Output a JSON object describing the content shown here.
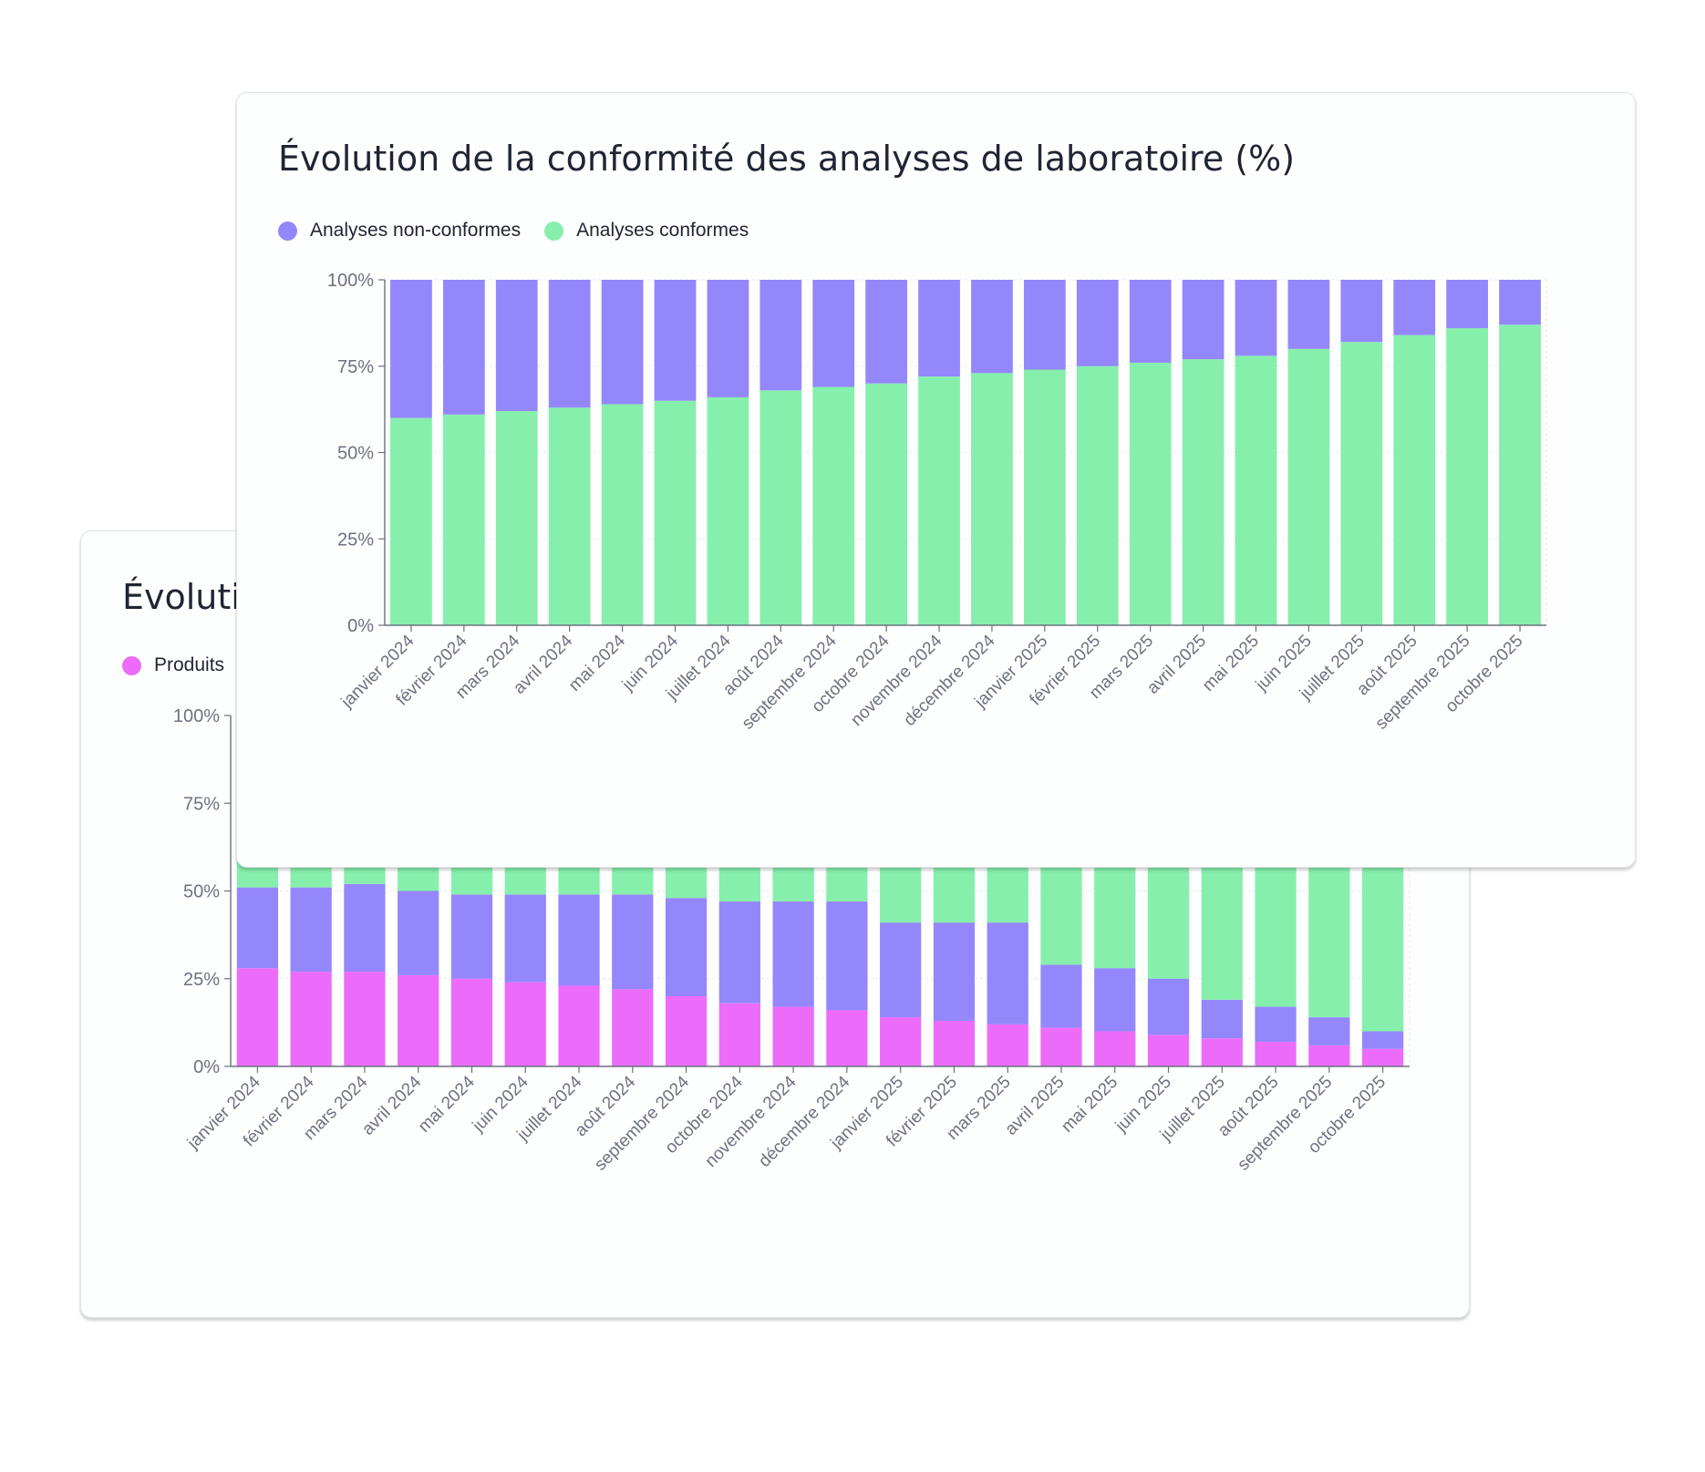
{
  "colors": {
    "compliant": "#86efac",
    "non_compliant": "#9487fb",
    "products": "#ec6cf9"
  },
  "chart_data": [
    {
      "id": "back",
      "type": "bar",
      "stacked": true,
      "title": "Évolution",
      "title_visible": "Évoluti",
      "legend_visible": [
        "Produits"
      ],
      "categories": [
        "janvier 2024",
        "février 2024",
        "mars 2024",
        "avril 2024",
        "mai 2024",
        "juin 2024",
        "juillet 2024",
        "août 2024",
        "septembre 2024",
        "octobre 2024",
        "novembre 2024",
        "décembre 2024",
        "janvier 2025",
        "février 2025",
        "mars 2025",
        "avril 2025",
        "mai 2025",
        "juin 2025",
        "juillet 2025",
        "août 2025",
        "septembre 2025",
        "octobre 2025"
      ],
      "series": [
        {
          "name": "Produits",
          "color": "#ec6cf9",
          "values": [
            28,
            27,
            27,
            26,
            25,
            24,
            23,
            22,
            20,
            18,
            17,
            16,
            14,
            13,
            12,
            11,
            10,
            9,
            8,
            7,
            6,
            5
          ]
        },
        {
          "name": "",
          "color": "#9487fb",
          "values": [
            23,
            24,
            25,
            24,
            24,
            25,
            26,
            27,
            28,
            29,
            30,
            31,
            27,
            28,
            29,
            18,
            18,
            16,
            11,
            10,
            8,
            5
          ]
        },
        {
          "name": "",
          "color": "#86efac",
          "values": [
            49,
            49,
            48,
            50,
            51,
            51,
            51,
            51,
            52,
            53,
            53,
            53,
            59,
            59,
            59,
            71,
            72,
            75,
            81,
            83,
            86,
            90
          ]
        }
      ],
      "yticks": [
        "0%",
        "25%",
        "50%",
        "75%",
        "100%"
      ],
      "ylim": [
        0,
        100
      ]
    },
    {
      "id": "front",
      "type": "bar",
      "stacked": true,
      "title": "Évolution de la conformité des analyses de laboratoire (%)",
      "categories": [
        "janvier 2024",
        "février 2024",
        "mars 2024",
        "avril 2024",
        "mai 2024",
        "juin 2024",
        "juillet 2024",
        "août 2024",
        "septembre 2024",
        "octobre 2024",
        "novembre 2024",
        "décembre 2024",
        "janvier 2025",
        "février 2025",
        "mars 2025",
        "avril 2025",
        "mai 2025",
        "juin 2025",
        "juillet 2025",
        "août 2025",
        "septembre 2025",
        "octobre 2025"
      ],
      "series": [
        {
          "name": "Analyses conformes",
          "color": "#86efac",
          "values": [
            60,
            61,
            62,
            63,
            64,
            65,
            66,
            68,
            69,
            70,
            72,
            73,
            74,
            75,
            76,
            77,
            78,
            80,
            82,
            84,
            86,
            87
          ]
        },
        {
          "name": "Analyses non-conformes",
          "color": "#9487fb",
          "values": [
            40,
            39,
            38,
            37,
            36,
            35,
            34,
            32,
            31,
            30,
            28,
            27,
            26,
            25,
            24,
            23,
            22,
            20,
            18,
            16,
            14,
            13
          ]
        }
      ],
      "legend": [
        "Analyses non-conformes",
        "Analyses conformes"
      ],
      "yticks": [
        "0%",
        "25%",
        "50%",
        "75%",
        "100%"
      ],
      "ylim": [
        0,
        100
      ]
    }
  ]
}
